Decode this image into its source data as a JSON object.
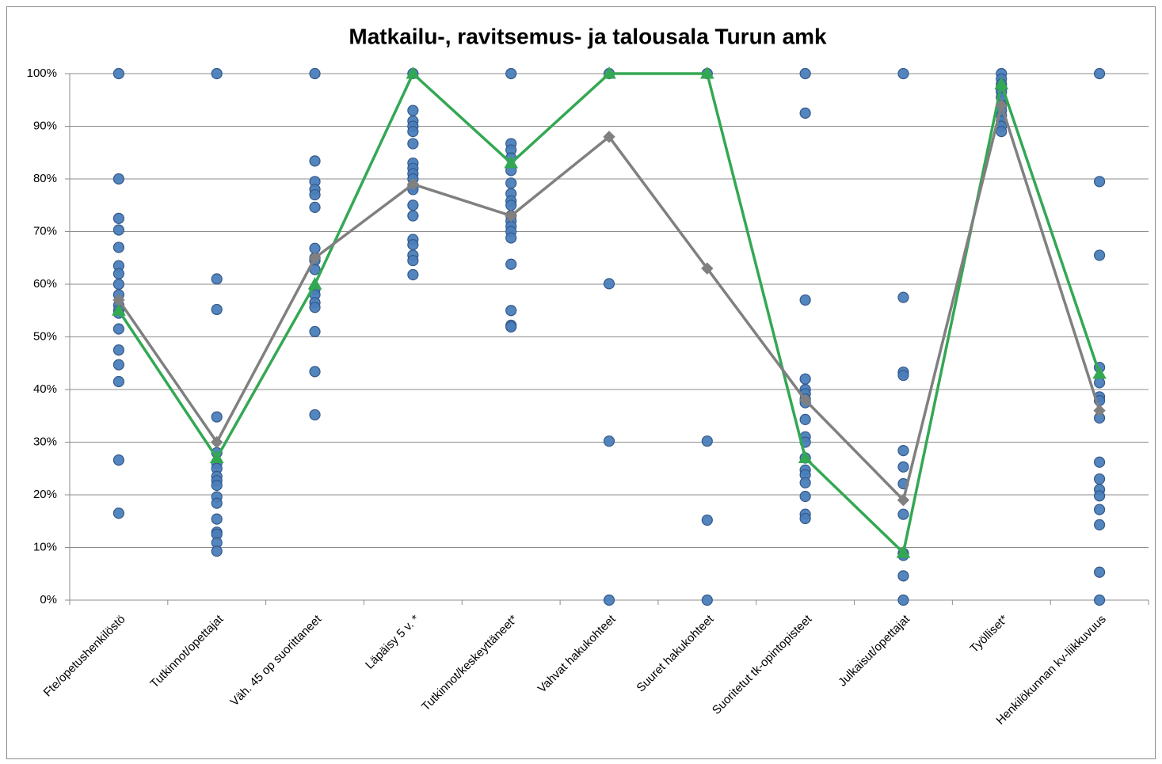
{
  "chart_data": {
    "type": "line",
    "title": "Matkailu-, ravitsemus- ja talousala Turun amk",
    "categories": [
      "Fte/opetushenkilöstö",
      "Tutkinnot/opettajat",
      "Väh. 45 op suorittaneet",
      "Läpäisy 5 v. *",
      "Tutkinnot/keskeyttäneet*",
      "Vahvat hakukohteet",
      "Suuret hakukohteet",
      "Suoritetut tk-opintopisteet",
      "Julkaisut/opettajat",
      "Työlliset*",
      "Henkilökunnan kv-liikkuvuus"
    ],
    "ylim": [
      0,
      100
    ],
    "yticks": [
      {
        "value": 0,
        "label": "0%"
      },
      {
        "value": 10,
        "label": "10%"
      },
      {
        "value": 20,
        "label": "20%"
      },
      {
        "value": 30,
        "label": "30%"
      },
      {
        "value": 40,
        "label": "40%"
      },
      {
        "value": 50,
        "label": "50%"
      },
      {
        "value": 60,
        "label": "60%"
      },
      {
        "value": 70,
        "label": "70%"
      },
      {
        "value": 80,
        "label": "80%"
      },
      {
        "value": 90,
        "label": "90%"
      },
      {
        "value": 100,
        "label": "100%"
      }
    ],
    "grid": true,
    "point_color": "#4a7ebb",
    "points": [
      [
        100,
        80,
        72.5,
        70.3,
        67,
        63.5,
        62,
        60,
        58,
        56,
        55,
        54.5,
        51.5,
        47.5,
        44.7,
        41.5,
        26.6,
        16.5
      ],
      [
        100,
        61,
        55.2,
        34.8,
        28,
        26,
        25,
        23.5,
        22.7,
        21.8,
        19.6,
        18.4,
        15.4,
        12.9,
        12.5,
        10.9,
        9.3
      ],
      [
        100,
        83.4,
        79.5,
        78,
        77,
        74.6,
        66.8,
        65,
        64.5,
        62.8,
        59,
        58,
        56.5,
        55.6,
        51,
        43.4,
        35.2
      ],
      [
        100,
        93,
        91,
        90,
        89,
        86.7,
        83,
        82,
        81,
        80,
        78.5,
        78,
        75,
        73,
        68.5,
        67.5,
        65.5,
        64.5,
        61.8
      ],
      [
        100,
        86.7,
        85.5,
        84,
        81.6,
        79.2,
        77.2,
        75.8,
        75,
        73,
        72,
        71,
        70,
        68.8,
        63.8,
        55,
        52.2,
        51.9
      ],
      [
        100,
        60.1,
        30.2,
        0
      ],
      [
        100,
        30.2,
        15.2,
        0
      ],
      [
        100,
        92.5,
        57,
        42,
        40,
        39.2,
        38.2,
        37.5,
        34.3,
        31,
        30,
        27,
        24.7,
        23.8,
        22.3,
        19.7,
        16.3,
        15.5
      ],
      [
        100,
        57.5,
        43.3,
        42.7,
        28.4,
        25.3,
        22.1,
        16.3,
        8.9,
        8.5,
        4.6,
        0
      ],
      [
        100,
        99,
        98,
        97.5,
        97,
        96.5,
        95.5,
        94,
        93,
        92,
        91,
        90,
        89
      ],
      [
        100,
        79.5,
        65.5,
        44.2,
        41.3,
        38.6,
        37.9,
        34.6,
        26.2,
        23,
        21,
        19.8,
        17.2,
        14.3,
        5.3,
        0
      ]
    ],
    "series": [
      {
        "color": "#33a853",
        "marker": "triangle",
        "values": [
          55,
          27,
          60,
          100,
          83,
          100,
          100,
          27,
          9,
          98,
          43
        ]
      },
      {
        "color": "#808080",
        "marker": "diamond",
        "values": [
          57,
          30,
          65,
          79,
          73,
          88,
          63,
          38,
          19,
          94,
          36
        ]
      }
    ]
  }
}
